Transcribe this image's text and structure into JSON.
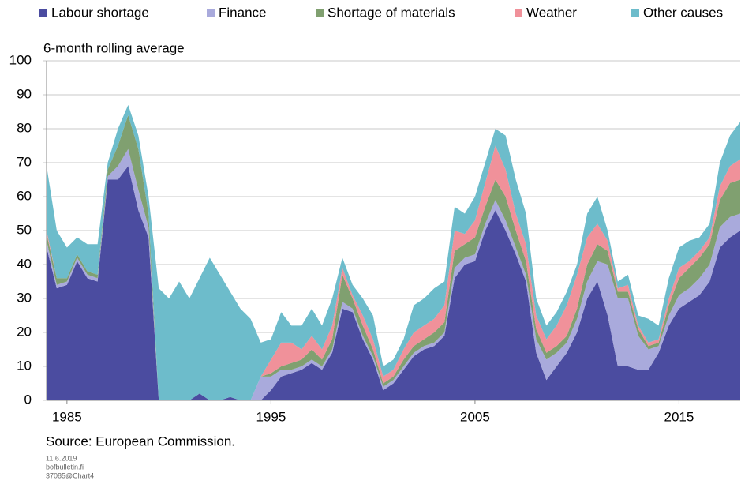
{
  "chart_data": {
    "type": "stacked-area",
    "subtitle": "6-month rolling average",
    "source": "Source: European Commission.",
    "notes": [
      "11.6.2019",
      "bofbulletin.fi",
      "37085@Chart4"
    ],
    "x": [
      1984,
      1984.5,
      1985,
      1985.5,
      1986,
      1986.5,
      1987,
      1987.5,
      1988,
      1988.5,
      1989,
      1989.5,
      1990,
      1990.5,
      1991,
      1991.5,
      1992,
      1992.5,
      1993,
      1993.5,
      1994,
      1994.5,
      1995,
      1995.5,
      1996,
      1996.5,
      1997,
      1997.5,
      1998,
      1998.5,
      1999,
      1999.5,
      2000,
      2000.5,
      2001,
      2001.5,
      2002,
      2002.5,
      2003,
      2003.5,
      2004,
      2004.5,
      2005,
      2005.5,
      2006,
      2006.5,
      2007,
      2007.5,
      2008,
      2008.5,
      2009,
      2009.5,
      2010,
      2010.5,
      2011,
      2011.5,
      2012,
      2012.5,
      2013,
      2013.5,
      2014,
      2014.5,
      2015,
      2015.5,
      2016,
      2016.5,
      2017,
      2017.5,
      2018
    ],
    "series": [
      {
        "name": "Labour shortage",
        "color": "#4b4ca0",
        "values": [
          45,
          33,
          34,
          41,
          36,
          35,
          65,
          65,
          69,
          56,
          48,
          0,
          0,
          0,
          0,
          2,
          0,
          0,
          1,
          0,
          0,
          0,
          3,
          7,
          8,
          9,
          11,
          9,
          14,
          27,
          26,
          18,
          12,
          3,
          5,
          9,
          13,
          15,
          16,
          19,
          36,
          40,
          41,
          50,
          56,
          50,
          43,
          35,
          14,
          6,
          10,
          14,
          20,
          30,
          35,
          25,
          10,
          10,
          9,
          9,
          14,
          22,
          27,
          29,
          31,
          35,
          45,
          48,
          50
        ]
      },
      {
        "name": "Finance",
        "color": "#a9aadc",
        "values": [
          2,
          1,
          1,
          1,
          1,
          1,
          1,
          4,
          5,
          6,
          3,
          0,
          0,
          0,
          0,
          0,
          0,
          0,
          0,
          0,
          0,
          7,
          4,
          2,
          1,
          1,
          1,
          1,
          1,
          2,
          1,
          1,
          1,
          1,
          1,
          1,
          1,
          1,
          1,
          1,
          3,
          2,
          2,
          2,
          3,
          3,
          2,
          2,
          4,
          6,
          4,
          3,
          4,
          5,
          6,
          15,
          20,
          20,
          10,
          6,
          2,
          3,
          4,
          4,
          5,
          5,
          6,
          6,
          5
        ]
      },
      {
        "name": "Shortage of materials",
        "color": "#80a070",
        "values": [
          2,
          2,
          1,
          1,
          1,
          1,
          2,
          6,
          10,
          12,
          4,
          0,
          0,
          0,
          0,
          0,
          0,
          0,
          0,
          0,
          0,
          0,
          1,
          1,
          2,
          2,
          3,
          2,
          3,
          8,
          3,
          3,
          2,
          1,
          1,
          2,
          2,
          2,
          3,
          3,
          5,
          4,
          5,
          5,
          6,
          7,
          5,
          4,
          3,
          2,
          2,
          2,
          3,
          5,
          5,
          4,
          2,
          2,
          2,
          1,
          1,
          3,
          5,
          6,
          6,
          6,
          8,
          10,
          10
        ]
      },
      {
        "name": "Weather",
        "color": "#f0919a",
        "values": [
          1,
          0,
          0,
          0,
          0,
          0,
          0,
          0,
          0,
          0,
          0,
          0,
          0,
          0,
          0,
          0,
          0,
          0,
          0,
          0,
          0,
          0,
          4,
          7,
          6,
          3,
          4,
          3,
          4,
          2,
          1,
          3,
          3,
          2,
          2,
          3,
          4,
          4,
          4,
          5,
          6,
          3,
          5,
          7,
          10,
          8,
          5,
          5,
          4,
          4,
          6,
          9,
          10,
          8,
          6,
          3,
          1,
          2,
          1,
          1,
          1,
          2,
          3,
          2,
          2,
          2,
          4,
          5,
          6
        ]
      },
      {
        "name": "Other causes",
        "color": "#6dbccb",
        "values": [
          19,
          14,
          9,
          5,
          8,
          9,
          2,
          5,
          3,
          4,
          5,
          33,
          30,
          35,
          30,
          34,
          42,
          37,
          31,
          27,
          24,
          10,
          6,
          9,
          5,
          7,
          8,
          7,
          8,
          3,
          3,
          5,
          7,
          3,
          3,
          3,
          8,
          8,
          9,
          7,
          7,
          6,
          7,
          6,
          5,
          10,
          10,
          9,
          5,
          4,
          4,
          4,
          3,
          7,
          8,
          3,
          2,
          3,
          3,
          7,
          4,
          6,
          6,
          6,
          4,
          4,
          7,
          9,
          11
        ]
      }
    ],
    "xlim": [
      1984,
      2018
    ],
    "xticks": [
      1985,
      1995,
      2005,
      2015
    ],
    "ylim": [
      0,
      100
    ],
    "yticks": [
      0,
      10,
      20,
      30,
      40,
      50,
      60,
      70,
      80,
      90,
      100
    ],
    "grid": true
  }
}
